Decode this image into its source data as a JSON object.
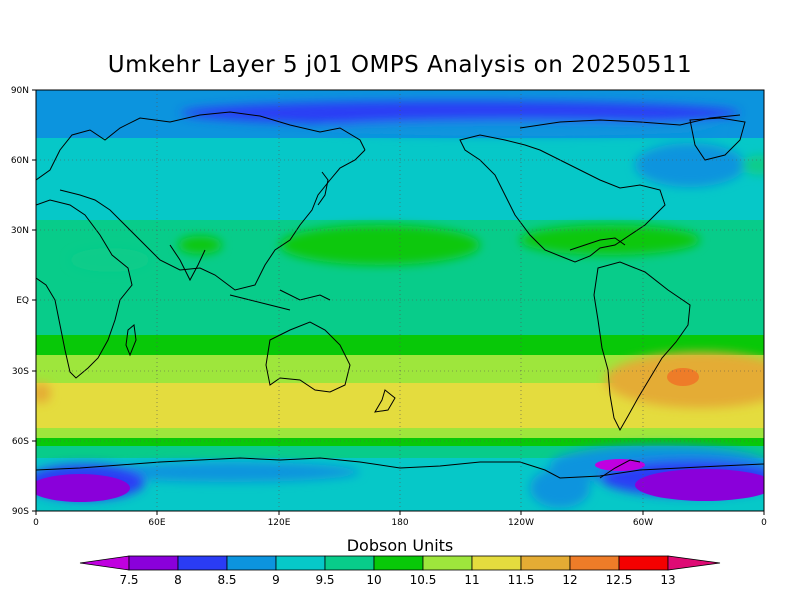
{
  "title": "Umkehr Layer 5 j01 OMPS Analysis on 20250511",
  "colorbar": {
    "title": "Dobson Units",
    "labels": [
      "7.5",
      "8",
      "8.5",
      "9",
      "9.5",
      "10",
      "10.5",
      "11",
      "11.5",
      "12",
      "12.5",
      "13"
    ],
    "colors": [
      "#c000e0",
      "#8a00da",
      "#2a3cf5",
      "#0c94de",
      "#06c8c8",
      "#08cc8a",
      "#08c808",
      "#9ee63c",
      "#e4dc3e",
      "#e4ac34",
      "#ee7c28",
      "#f40000",
      "#de0a74"
    ]
  },
  "axes": {
    "lat_labels": [
      "90N",
      "60N",
      "30N",
      "EQ",
      "30S",
      "60S",
      "90S"
    ],
    "lon_labels": [
      "0",
      "60E",
      "120E",
      "180",
      "120W",
      "60W",
      "0"
    ]
  }
}
